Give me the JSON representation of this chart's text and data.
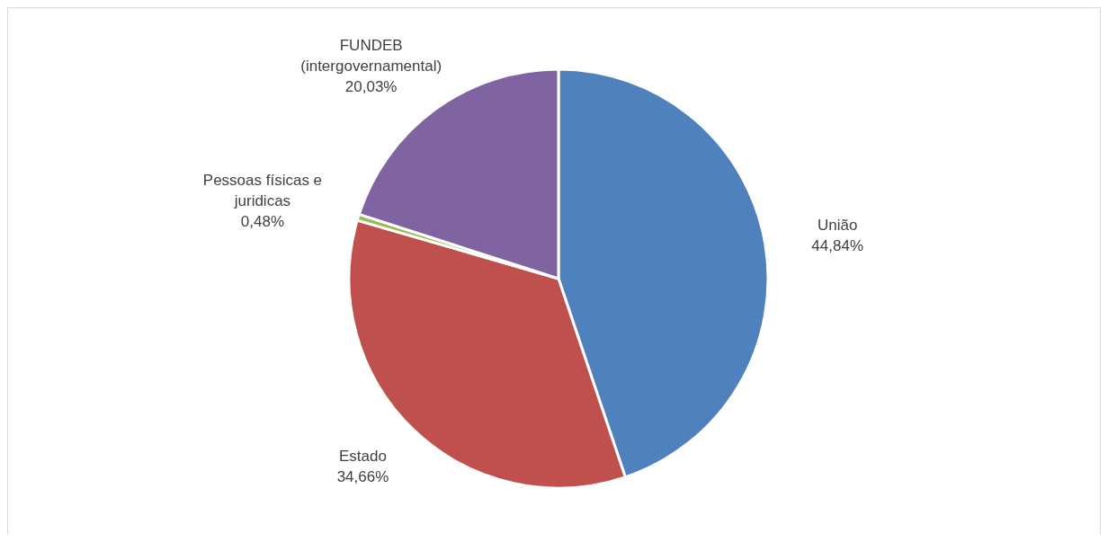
{
  "chart_data": {
    "type": "pie",
    "categories": [
      "União",
      "Estado",
      "Pessoas físicas e juridicas",
      "FUNDEB (intergovernamental)"
    ],
    "values": [
      44.84,
      34.66,
      0.48,
      20.03
    ],
    "value_labels": [
      "44,84%",
      "34,66%",
      "0,48%",
      "20,03%"
    ],
    "colors": [
      "#4f81bd",
      "#c0504d",
      "#9bbb59",
      "#8064a2"
    ]
  }
}
